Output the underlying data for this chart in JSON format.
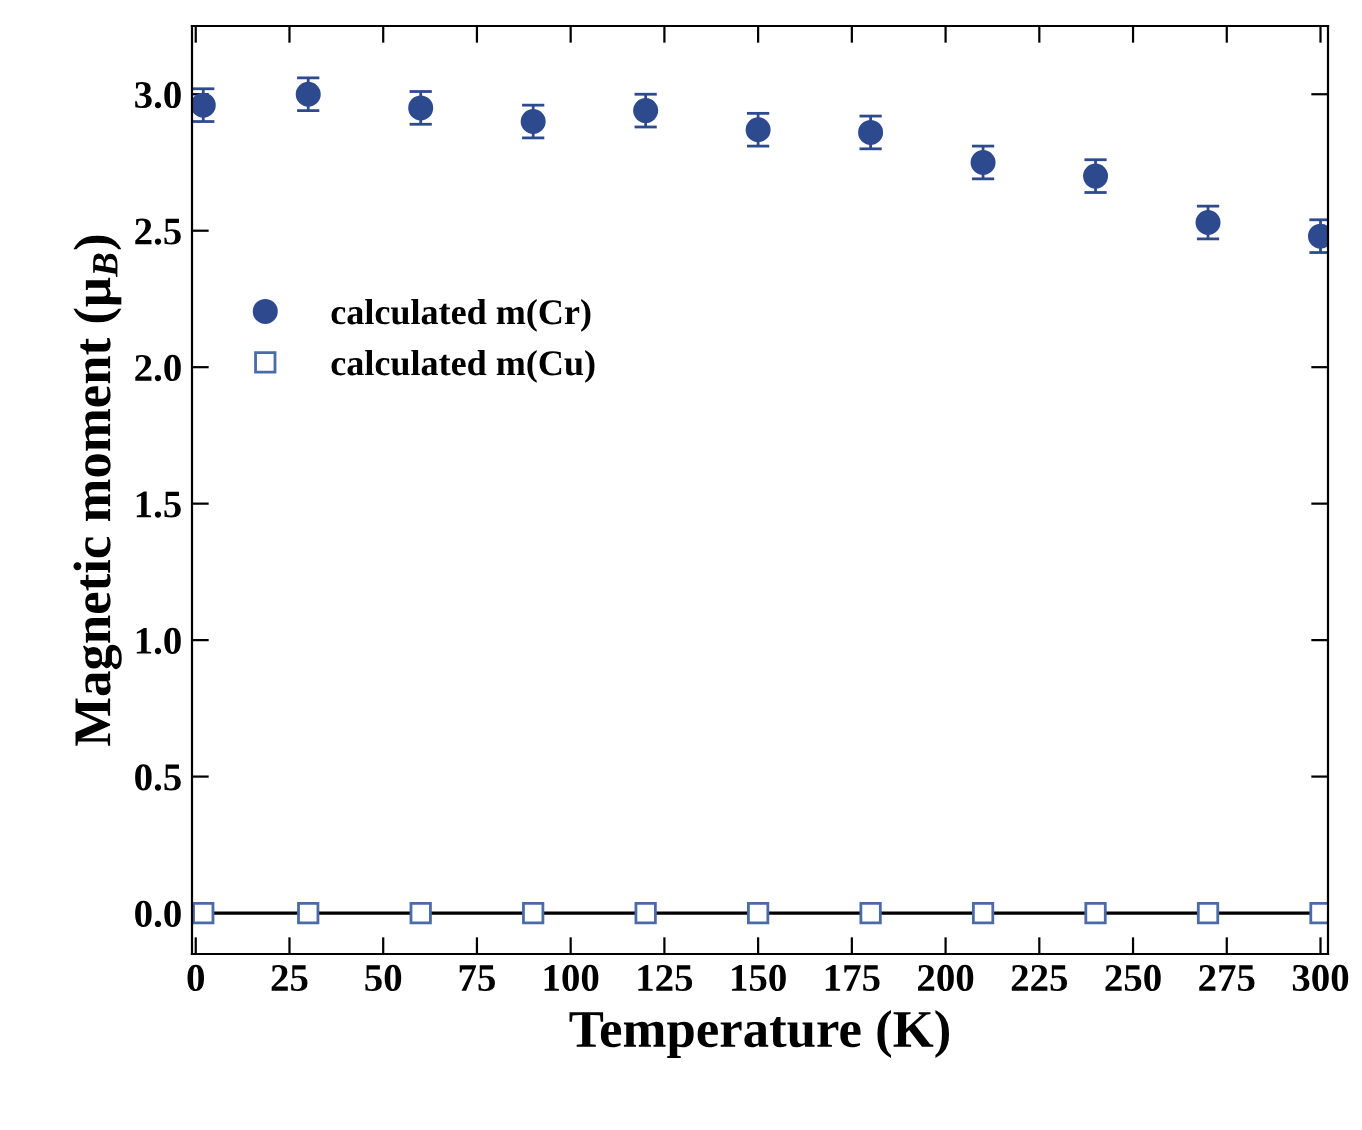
{
  "chart_data": {
    "type": "scatter",
    "xlabel": "Temperature (K)",
    "ylabel": "Magnetic moment (μ$_{B}$)",
    "xlim": [
      -1,
      302
    ],
    "xticks": [
      0,
      25,
      50,
      75,
      100,
      125,
      150,
      175,
      200,
      225,
      250,
      275,
      300
    ],
    "ylim": [
      -0.15,
      3.25
    ],
    "yticks": [
      {
        "value": 0,
        "label": "0.0"
      },
      {
        "value": 0.5,
        "label": "0.5"
      },
      {
        "value": 1,
        "label": "1.0"
      },
      {
        "value": 1.5,
        "label": "1.5"
      },
      {
        "value": 2,
        "label": "2.0"
      },
      {
        "value": 2.5,
        "label": "2.5"
      },
      {
        "value": 3,
        "label": "3.0"
      }
    ],
    "legend": "top left",
    "grid": false,
    "series": [
      {
        "name": "calculated m(Cr)",
        "color": "#2e4a8f",
        "marker": "circle",
        "x": [
          2,
          30,
          60,
          90,
          120,
          150,
          180,
          210,
          240,
          270,
          300
        ],
        "values": [
          2.96,
          3.0,
          2.95,
          2.9,
          2.94,
          2.87,
          2.86,
          2.75,
          2.7,
          2.53,
          2.48
        ],
        "errors": [
          0.06,
          0.06,
          0.06,
          0.06,
          0.06,
          0.06,
          0.06,
          0.06,
          0.06,
          0.06,
          0.06
        ]
      },
      {
        "name": "calculated m(Cu)",
        "color": "#4a6aa8",
        "marker": "square",
        "type": "line",
        "x": [
          2,
          30,
          60,
          90,
          120,
          150,
          180,
          210,
          240,
          270,
          300
        ],
        "values": [
          0,
          0,
          0,
          0,
          0,
          0,
          0,
          0,
          0,
          0,
          0
        ]
      }
    ]
  }
}
